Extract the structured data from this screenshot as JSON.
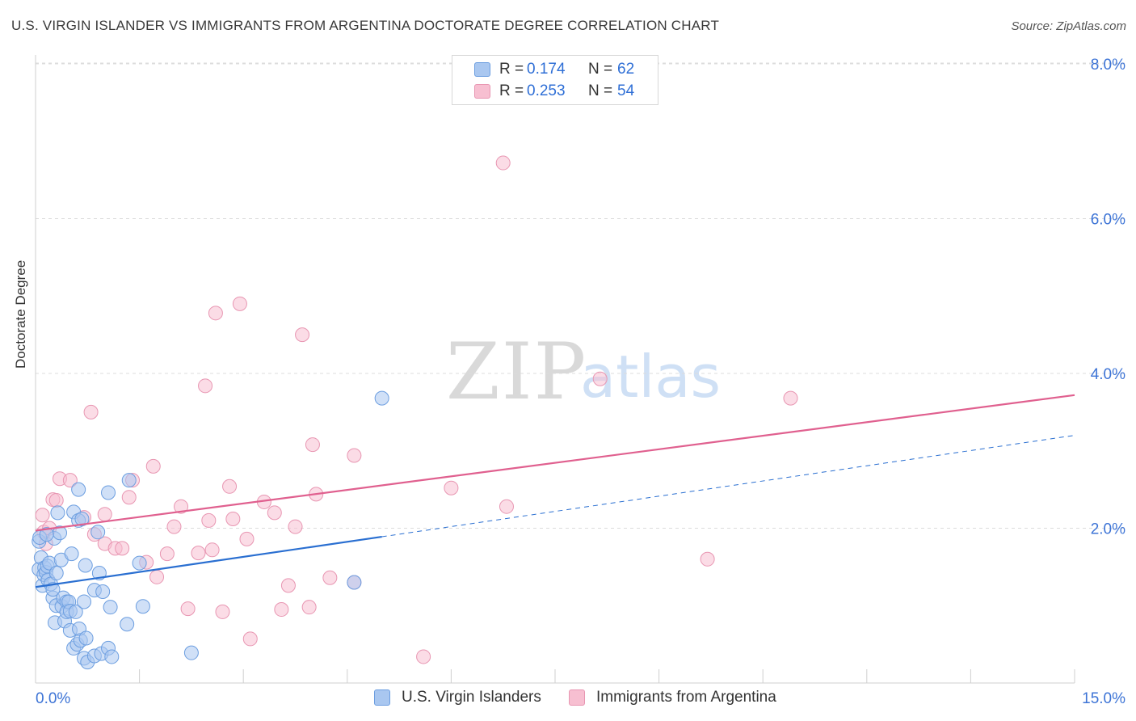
{
  "title": "U.S. VIRGIN ISLANDER VS IMMIGRANTS FROM ARGENTINA DOCTORATE DEGREE CORRELATION CHART",
  "source": "Source: ZipAtlas.com",
  "watermark": {
    "zip": "ZIP",
    "atlas": "atlas"
  },
  "legend_top": {
    "rows": [
      {
        "r_label": "R =",
        "r_value": "0.174",
        "n_label": "N =",
        "n_value": "62"
      },
      {
        "r_label": "R =",
        "r_value": "0.253",
        "n_label": "N =",
        "n_value": "54"
      }
    ]
  },
  "legend_bottom": {
    "series1": "U.S. Virgin Islanders",
    "series2": "Immigrants from Argentina"
  },
  "colors": {
    "blue_fill": "#a9c7f0",
    "blue_stroke": "#6c9ee0",
    "blue_line": "#2a6fd1",
    "pink_fill": "#f7bfd1",
    "pink_stroke": "#e896b2",
    "pink_line": "#e0608f",
    "axis_label": "#3d74d6",
    "grid": "#dcdcdc"
  },
  "chart_data": {
    "type": "scatter",
    "title": "U.S. VIRGIN ISLANDER VS IMMIGRANTS FROM ARGENTINA DOCTORATE DEGREE CORRELATION CHART",
    "xlabel": "",
    "ylabel": "Doctorate Degree",
    "xlim": [
      0,
      15
    ],
    "ylim": [
      0,
      8.3
    ],
    "x_tick_labels": [
      {
        "value": 0,
        "label": "0.0%"
      },
      {
        "value": 15,
        "label": "15.0%"
      }
    ],
    "y_tick_labels": [
      {
        "value": 2,
        "label": "2.0%"
      },
      {
        "value": 4,
        "label": "4.0%"
      },
      {
        "value": 6,
        "label": "6.0%"
      },
      {
        "value": 8,
        "label": "8.0%"
      }
    ],
    "series": [
      {
        "name": "U.S. Virgin Islanders",
        "R": 0.174,
        "N": 62,
        "trend": {
          "x0": 0.0,
          "y0": 1.24,
          "x1": 5.0,
          "y1": 1.89
        },
        "trend_dashed": {
          "x0": 5.0,
          "y0": 1.89,
          "x1": 15.0,
          "y1": 3.2
        },
        "points": [
          [
            0.05,
            1.83
          ],
          [
            0.05,
            1.47
          ],
          [
            0.06,
            1.88
          ],
          [
            0.08,
            1.62
          ],
          [
            0.1,
            1.26
          ],
          [
            0.12,
            1.4
          ],
          [
            0.13,
            1.49
          ],
          [
            0.15,
            1.43
          ],
          [
            0.17,
            1.51
          ],
          [
            0.18,
            1.33
          ],
          [
            0.2,
            1.55
          ],
          [
            0.22,
            1.28
          ],
          [
            0.25,
            1.1
          ],
          [
            0.25,
            1.21
          ],
          [
            0.27,
            1.87
          ],
          [
            0.28,
            0.78
          ],
          [
            0.3,
            1.0
          ],
          [
            0.3,
            1.42
          ],
          [
            0.32,
            2.2
          ],
          [
            0.35,
            1.94
          ],
          [
            0.37,
            1.59
          ],
          [
            0.38,
            0.99
          ],
          [
            0.4,
            1.1
          ],
          [
            0.42,
            0.8
          ],
          [
            0.45,
            1.05
          ],
          [
            0.45,
            0.92
          ],
          [
            0.48,
            1.05
          ],
          [
            0.5,
            0.93
          ],
          [
            0.5,
            0.68
          ],
          [
            0.52,
            1.67
          ],
          [
            0.55,
            2.21
          ],
          [
            0.55,
            0.45
          ],
          [
            0.58,
            0.92
          ],
          [
            0.6,
            0.5
          ],
          [
            0.62,
            2.5
          ],
          [
            0.62,
            2.1
          ],
          [
            0.63,
            0.7
          ],
          [
            0.65,
            0.55
          ],
          [
            0.67,
            2.12
          ],
          [
            0.7,
            0.32
          ],
          [
            0.7,
            1.05
          ],
          [
            0.72,
            1.52
          ],
          [
            0.73,
            0.58
          ],
          [
            0.75,
            0.27
          ],
          [
            0.85,
            0.35
          ],
          [
            0.85,
            1.2
          ],
          [
            0.9,
            1.95
          ],
          [
            0.92,
            1.42
          ],
          [
            0.95,
            0.38
          ],
          [
            0.97,
            1.18
          ],
          [
            1.05,
            2.46
          ],
          [
            1.05,
            0.45
          ],
          [
            1.08,
            0.98
          ],
          [
            1.1,
            0.34
          ],
          [
            1.32,
            0.76
          ],
          [
            1.35,
            2.62
          ],
          [
            1.5,
            1.55
          ],
          [
            1.55,
            0.99
          ],
          [
            2.25,
            0.39
          ],
          [
            4.6,
            1.3
          ],
          [
            5.0,
            3.68
          ],
          [
            0.16,
            1.92
          ]
        ]
      },
      {
        "name": "Immigrants from Argentina",
        "R": 0.253,
        "N": 54,
        "trend": {
          "x0": 0.0,
          "y0": 1.97,
          "x1": 15.0,
          "y1": 3.72
        },
        "points": [
          [
            0.1,
            2.17
          ],
          [
            0.12,
            1.95
          ],
          [
            0.15,
            1.8
          ],
          [
            0.2,
            2.0
          ],
          [
            0.25,
            2.37
          ],
          [
            0.3,
            2.36
          ],
          [
            0.35,
            2.64
          ],
          [
            0.5,
            2.62
          ],
          [
            0.7,
            2.14
          ],
          [
            0.8,
            3.5
          ],
          [
            0.85,
            1.92
          ],
          [
            1.0,
            2.18
          ],
          [
            1.0,
            1.8
          ],
          [
            1.15,
            1.74
          ],
          [
            1.25,
            1.74
          ],
          [
            1.35,
            2.4
          ],
          [
            1.4,
            2.62
          ],
          [
            1.6,
            1.56
          ],
          [
            1.7,
            2.8
          ],
          [
            1.75,
            1.37
          ],
          [
            1.9,
            1.67
          ],
          [
            2.0,
            2.02
          ],
          [
            2.1,
            2.28
          ],
          [
            2.2,
            0.96
          ],
          [
            2.35,
            1.68
          ],
          [
            2.45,
            3.84
          ],
          [
            2.5,
            2.1
          ],
          [
            2.55,
            1.72
          ],
          [
            2.6,
            4.78
          ],
          [
            2.7,
            0.92
          ],
          [
            2.8,
            2.54
          ],
          [
            2.85,
            2.12
          ],
          [
            2.95,
            4.9
          ],
          [
            3.05,
            1.86
          ],
          [
            3.1,
            0.57
          ],
          [
            3.3,
            2.34
          ],
          [
            3.45,
            2.2
          ],
          [
            3.55,
            0.95
          ],
          [
            3.65,
            1.26
          ],
          [
            3.75,
            2.02
          ],
          [
            3.85,
            4.5
          ],
          [
            3.95,
            0.98
          ],
          [
            4.0,
            3.08
          ],
          [
            4.05,
            2.44
          ],
          [
            4.25,
            1.36
          ],
          [
            4.6,
            2.94
          ],
          [
            4.6,
            1.3
          ],
          [
            5.6,
            0.34
          ],
          [
            6.0,
            2.52
          ],
          [
            6.75,
            6.72
          ],
          [
            6.8,
            2.28
          ],
          [
            8.15,
            3.93
          ],
          [
            9.7,
            1.6
          ],
          [
            10.9,
            3.68
          ]
        ]
      }
    ]
  }
}
